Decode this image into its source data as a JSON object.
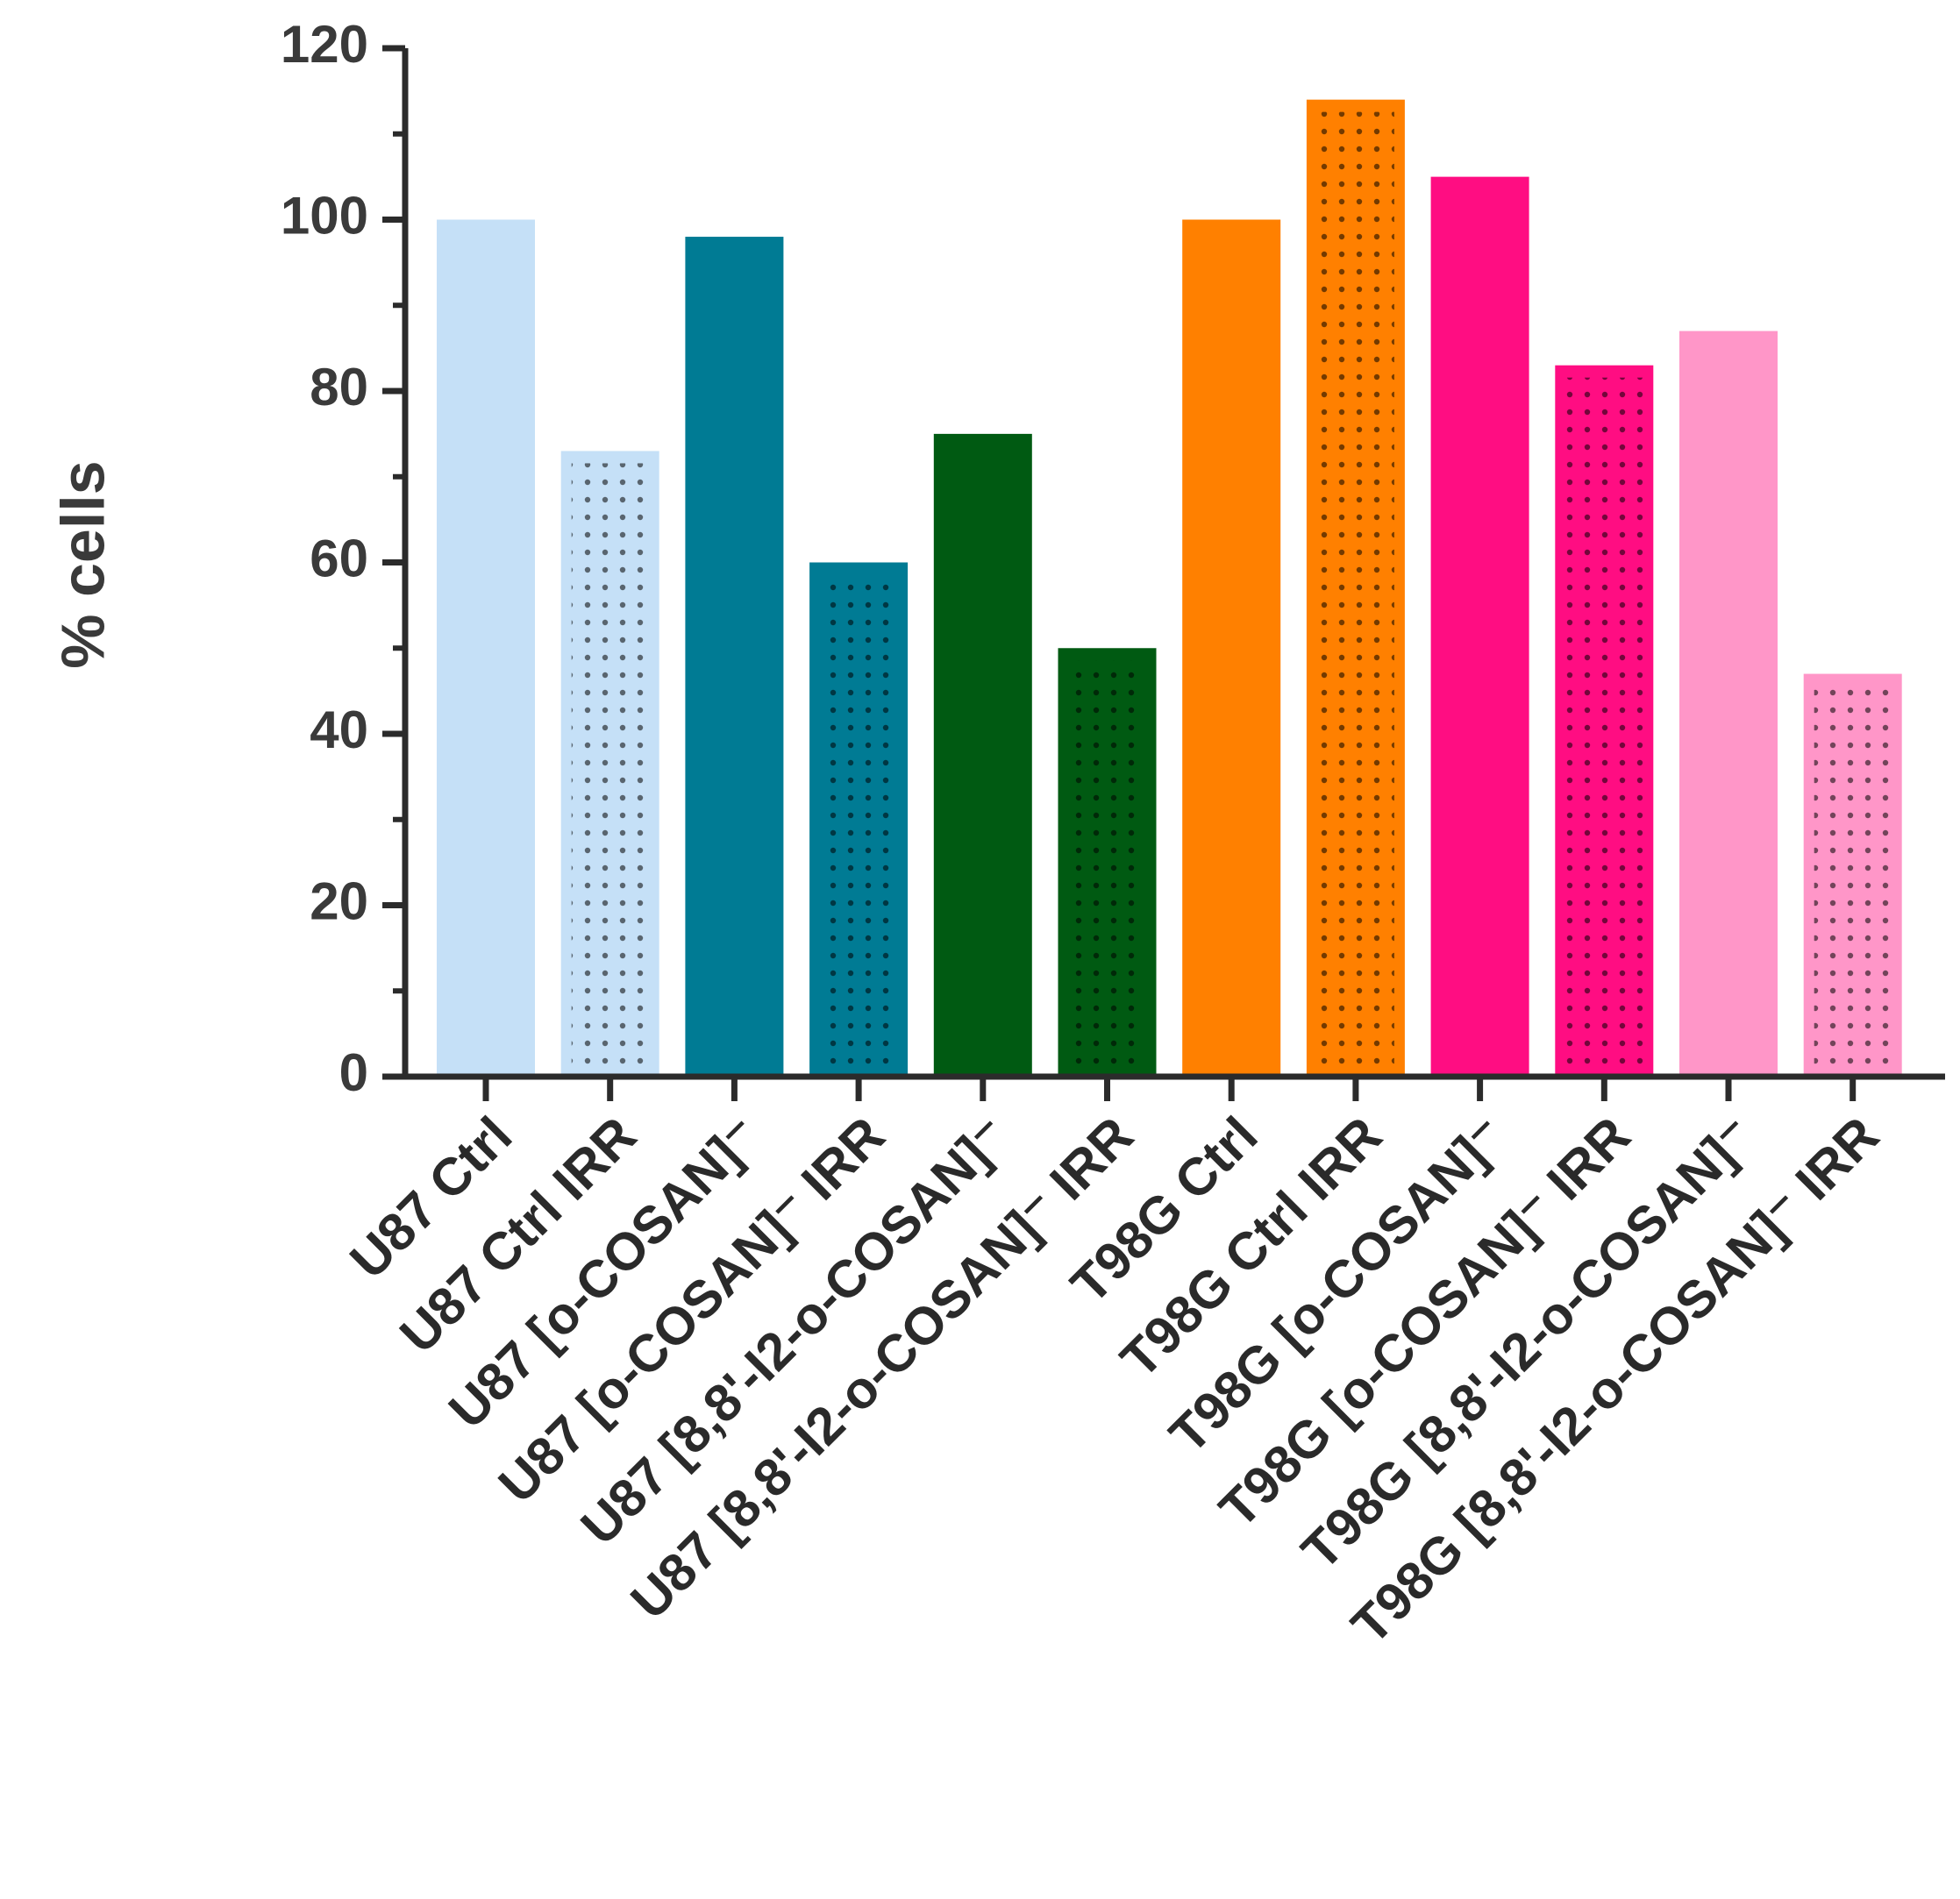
{
  "chart_data": {
    "type": "bar",
    "title": "",
    "xlabel": "",
    "ylabel": "% cells",
    "ylim": [
      0,
      120
    ],
    "yticks": [
      "0",
      "20",
      "40",
      "60",
      "80",
      "100",
      "120"
    ],
    "grid": false,
    "categories": [
      "U87 Ctrl",
      "U87 Ctrl IRR",
      "U87 [o-COSAN]⁻",
      "U87 [o-COSAN]⁻  IRR",
      "U87 [8,8'-I2-o-COSAN]⁻",
      "U87  [8,8'-I2-o-COSAN]⁻ IRR",
      "T98G Ctrl",
      "T98G Ctrl IRR",
      "T98G [o-COSAN]⁻",
      "T98G [o-COSAN]⁻ IRR",
      "T98G [8,8'-I2-o-COSAN]⁻",
      "T98G [8,8'-I2-o-COSAN]⁻ IRR"
    ],
    "values": [
      100,
      73,
      98,
      60,
      75,
      50,
      100,
      114,
      105,
      83,
      87,
      47
    ],
    "colors": [
      "#c5e0f7",
      "#c5e0f7",
      "#007b94",
      "#007b94",
      "#005a12",
      "#005a12",
      "#ff8000",
      "#ff8000",
      "#ff0d82",
      "#ff0d82",
      "#ff96c8",
      "#ff96c8"
    ],
    "dotted": [
      false,
      true,
      false,
      true,
      false,
      true,
      false,
      true,
      false,
      true,
      false,
      true
    ]
  }
}
